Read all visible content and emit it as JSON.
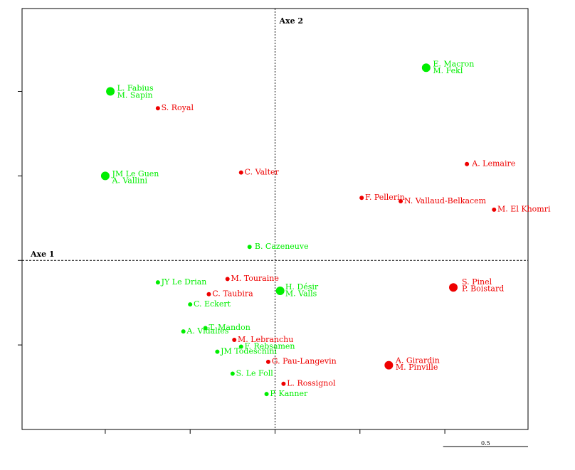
{
  "chart_data": {
    "type": "scatter",
    "title": "",
    "xlabel": "Axe 1",
    "ylabel": "Axe 2",
    "xlim": [
      -1.49,
      1.49
    ],
    "ylim": [
      -1.0,
      1.49
    ],
    "scale_label": "0.5",
    "colors": {
      "red": "#ee0000",
      "green": "#00ee00"
    },
    "series": [
      {
        "color": "red",
        "points": [
          {
            "label": "S. Royal",
            "x": -0.69,
            "y": 0.9,
            "size": "small"
          },
          {
            "label": "A. Lemaire",
            "x": 1.13,
            "y": 0.57,
            "size": "small"
          },
          {
            "label": "C. Valter",
            "x": -0.2,
            "y": 0.52,
            "size": "small"
          },
          {
            "label": "F. Pellerin",
            "x": 0.51,
            "y": 0.37,
            "size": "small"
          },
          {
            "label": "N. Vallaud-Belkacem",
            "x": 0.74,
            "y": 0.35,
            "size": "small"
          },
          {
            "label": "M. El Khomri",
            "x": 1.29,
            "y": 0.3,
            "size": "small"
          },
          {
            "label": "M. Touraine",
            "x": -0.28,
            "y": -0.11,
            "size": "small"
          },
          {
            "label": "C. Taubira",
            "x": -0.39,
            "y": -0.2,
            "size": "small"
          },
          {
            "label": "M. Lebranchu",
            "x": -0.24,
            "y": -0.47,
            "size": "small"
          },
          {
            "label": "G. Pau-Langevin",
            "x": -0.04,
            "y": -0.6,
            "size": "small"
          },
          {
            "label": "L. Rossignol",
            "x": 0.05,
            "y": -0.73,
            "size": "small"
          },
          {
            "label": "S. Pinel / P. Boistard",
            "x": 1.05,
            "y": -0.16,
            "size": "large"
          },
          {
            "label": "A. Girardin / M. Pinville",
            "x": 0.67,
            "y": -0.62,
            "size": "large"
          }
        ]
      },
      {
        "color": "green",
        "points": [
          {
            "label": "E. Macron / M. Fekl",
            "x": 0.89,
            "y": 1.14,
            "size": "large"
          },
          {
            "label": "L. Fabius / M. Sapin",
            "x": -0.97,
            "y": 1.0,
            "size": "large"
          },
          {
            "label": "JM Le Guen / A. Vallini",
            "x": -1.0,
            "y": 0.5,
            "size": "large"
          },
          {
            "label": "B. Cazeneuve",
            "x": -0.15,
            "y": 0.08,
            "size": "small"
          },
          {
            "label": "H. Désir / M. Valls",
            "x": 0.03,
            "y": -0.18,
            "size": "large"
          },
          {
            "label": "JY Le Drian",
            "x": -0.69,
            "y": -0.13,
            "size": "small"
          },
          {
            "label": "C. Eckert",
            "x": -0.5,
            "y": -0.26,
            "size": "small"
          },
          {
            "label": "T. Mandon",
            "x": -0.41,
            "y": -0.4,
            "size": "small"
          },
          {
            "label": "A. Vidalies",
            "x": -0.54,
            "y": -0.42,
            "size": "small"
          },
          {
            "label": "F. Rebsamen",
            "x": -0.2,
            "y": -0.51,
            "size": "small"
          },
          {
            "label": "JM Todeschini",
            "x": -0.34,
            "y": -0.54,
            "size": "small"
          },
          {
            "label": "S. Le Foll",
            "x": -0.25,
            "y": -0.67,
            "size": "small"
          },
          {
            "label": "P. Kanner",
            "x": -0.05,
            "y": -0.79,
            "size": "small"
          }
        ]
      }
    ],
    "labels": [
      {
        "text": "S. Royal",
        "color": "red",
        "x": -0.67,
        "y": 0.905
      },
      {
        "text": "A. Lemaire",
        "color": "red",
        "x": 1.16,
        "y": 0.575
      },
      {
        "text": "C. Valter",
        "color": "red",
        "x": -0.18,
        "y": 0.525
      },
      {
        "text": "F. Pellerin",
        "color": "red",
        "x": 0.53,
        "y": 0.375
      },
      {
        "text": "N. Vallaud-Belkacem",
        "color": "red",
        "x": 0.76,
        "y": 0.355
      },
      {
        "text": "M. El Khomri",
        "color": "red",
        "x": 1.31,
        "y": 0.305
      },
      {
        "text": "M. Touraine",
        "color": "red",
        "x": -0.26,
        "y": -0.105
      },
      {
        "text": "C. Taubira",
        "color": "red",
        "x": -0.37,
        "y": -0.195
      },
      {
        "text": "M. Lebranchu",
        "color": "red",
        "x": -0.22,
        "y": -0.465
      },
      {
        "text": "G. Pau-Langevin",
        "color": "red",
        "x": -0.02,
        "y": -0.595
      },
      {
        "text": "L. Rossignol",
        "color": "red",
        "x": 0.07,
        "y": -0.725
      },
      {
        "text": "S. Pinel",
        "color": "red",
        "x": 1.1,
        "y": -0.125
      },
      {
        "text": "P. Boistard",
        "color": "red",
        "x": 1.1,
        "y": -0.165
      },
      {
        "text": "A. Girardin",
        "color": "red",
        "x": 0.71,
        "y": -0.59
      },
      {
        "text": "M. Pinville",
        "color": "red",
        "x": 0.71,
        "y": -0.63
      },
      {
        "text": "E. Macron",
        "color": "green",
        "x": 0.93,
        "y": 1.165
      },
      {
        "text": "M. Fekl",
        "color": "green",
        "x": 0.93,
        "y": 1.125
      },
      {
        "text": "L. Fabius",
        "color": "green",
        "x": -0.93,
        "y": 1.02
      },
      {
        "text": "M. Sapin",
        "color": "green",
        "x": -0.93,
        "y": 0.98
      },
      {
        "text": "JM Le Guen",
        "color": "green",
        "x": -0.96,
        "y": 0.515
      },
      {
        "text": "A. Vallini",
        "color": "green",
        "x": -0.96,
        "y": 0.475
      },
      {
        "text": "B. Cazeneuve",
        "color": "green",
        "x": -0.12,
        "y": 0.085
      },
      {
        "text": "H. Désir",
        "color": "green",
        "x": 0.06,
        "y": -0.155
      },
      {
        "text": "M. Valls",
        "color": "green",
        "x": 0.06,
        "y": -0.195
      },
      {
        "text": "JY Le Drian",
        "color": "green",
        "x": -0.67,
        "y": -0.125
      },
      {
        "text": "C. Eckert",
        "color": "green",
        "x": -0.48,
        "y": -0.255
      },
      {
        "text": "T. Mandon",
        "color": "green",
        "x": -0.39,
        "y": -0.395
      },
      {
        "text": "A. Vidalies",
        "color": "green",
        "x": -0.52,
        "y": -0.415
      },
      {
        "text": "F. Rebsamen",
        "color": "green",
        "x": -0.18,
        "y": -0.505
      },
      {
        "text": "JM Todeschini",
        "color": "green",
        "x": -0.32,
        "y": -0.535
      },
      {
        "text": "S. Le Foll",
        "color": "green",
        "x": -0.23,
        "y": -0.665
      },
      {
        "text": "P. Kanner",
        "color": "green",
        "x": -0.03,
        "y": -0.785
      }
    ]
  }
}
